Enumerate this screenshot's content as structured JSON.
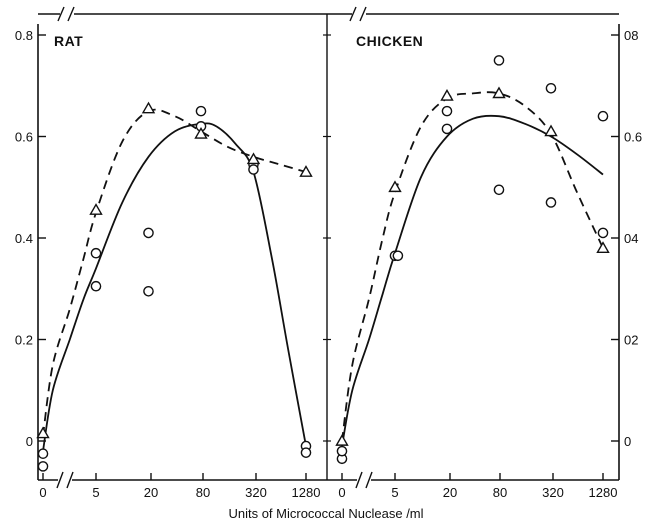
{
  "chart_data": [
    {
      "type": "scatter",
      "title": "RAT",
      "xlabel": "Units of Micrococcal Nuclease /ml",
      "ylabel": "",
      "x_scale": "log2 (broken axis at 0)",
      "x_ticks": [
        0,
        5,
        20,
        80,
        320,
        1280
      ],
      "y_ticks": [
        0,
        0.2,
        0.4,
        0.6,
        0.8
      ],
      "ylim": [
        -0.06,
        0.82
      ],
      "grid": false,
      "legend": "none",
      "series": [
        {
          "marker": "circle",
          "style": "open",
          "points": [
            {
              "x": 0,
              "y": -0.05
            },
            {
              "x": 0,
              "y": -0.025
            },
            {
              "x": 5,
              "y": 0.37
            },
            {
              "x": 5,
              "y": 0.305
            },
            {
              "x": 20,
              "y": 0.41
            },
            {
              "x": 20,
              "y": 0.295
            },
            {
              "x": 80,
              "y": 0.65
            },
            {
              "x": 80,
              "y": 0.62
            },
            {
              "x": 320,
              "y": 0.545
            },
            {
              "x": 320,
              "y": 0.535
            },
            {
              "x": 1280,
              "y": -0.01
            },
            {
              "x": 1280,
              "y": -0.023
            }
          ]
        },
        {
          "marker": "triangle",
          "style": "open",
          "points": [
            {
              "x": 0,
              "y": 0.015
            },
            {
              "x": 5,
              "y": 0.455
            },
            {
              "x": 20,
              "y": 0.655
            },
            {
              "x": 80,
              "y": 0.605
            },
            {
              "x": 320,
              "y": 0.555
            },
            {
              "x": 1280,
              "y": 0.53
            }
          ]
        }
      ],
      "curves": [
        {
          "style": "solid",
          "points": [
            {
              "x": 0,
              "y": -0.02
            },
            {
              "x": 1.6,
              "y": 0.1
            },
            {
              "x": 2.5,
              "y": 0.2
            },
            {
              "x": 3.6,
              "y": 0.28
            },
            {
              "x": 5,
              "y": 0.34
            },
            {
              "x": 10,
              "y": 0.47
            },
            {
              "x": 20,
              "y": 0.56
            },
            {
              "x": 40,
              "y": 0.61
            },
            {
              "x": 80,
              "y": 0.625
            },
            {
              "x": 120,
              "y": 0.62
            },
            {
              "x": 200,
              "y": 0.585
            },
            {
              "x": 320,
              "y": 0.53
            },
            {
              "x": 520,
              "y": 0.36
            },
            {
              "x": 800,
              "y": 0.18
            },
            {
              "x": 1280,
              "y": -0.01
            }
          ]
        },
        {
          "style": "dashed",
          "points": [
            {
              "x": 0,
              "y": 0.01
            },
            {
              "x": 1.6,
              "y": 0.15
            },
            {
              "x": 2.5,
              "y": 0.26
            },
            {
              "x": 3.6,
              "y": 0.36
            },
            {
              "x": 5,
              "y": 0.45
            },
            {
              "x": 10,
              "y": 0.59
            },
            {
              "x": 20,
              "y": 0.65
            },
            {
              "x": 40,
              "y": 0.64
            },
            {
              "x": 80,
              "y": 0.61
            },
            {
              "x": 160,
              "y": 0.58
            },
            {
              "x": 320,
              "y": 0.56
            },
            {
              "x": 640,
              "y": 0.545
            },
            {
              "x": 1280,
              "y": 0.53
            }
          ]
        }
      ]
    },
    {
      "type": "scatter",
      "title": "CHICKEN",
      "xlabel": "Units of Micrococcal Nuclease /ml",
      "ylabel": "",
      "x_scale": "log2 (broken axis at 0)",
      "x_ticks": [
        0,
        5,
        20,
        80,
        320,
        1280
      ],
      "y_ticks": [
        0,
        0.2,
        0.4,
        0.6,
        0.8
      ],
      "ylim": [
        -0.06,
        0.82
      ],
      "grid": false,
      "legend": "none",
      "series": [
        {
          "marker": "circle",
          "style": "open",
          "points": [
            {
              "x": 0,
              "y": -0.035
            },
            {
              "x": 0,
              "y": -0.02
            },
            {
              "x": 5,
              "y": 0.365
            },
            {
              "x": 5.4,
              "y": 0.365
            },
            {
              "x": 20,
              "y": 0.65
            },
            {
              "x": 20,
              "y": 0.615
            },
            {
              "x": 80,
              "y": 0.75
            },
            {
              "x": 80,
              "y": 0.495
            },
            {
              "x": 320,
              "y": 0.695
            },
            {
              "x": 320,
              "y": 0.47
            },
            {
              "x": 1280,
              "y": 0.64
            },
            {
              "x": 1280,
              "y": 0.41
            }
          ]
        },
        {
          "marker": "triangle",
          "style": "open",
          "points": [
            {
              "x": 0,
              "y": 0.0
            },
            {
              "x": 5,
              "y": 0.5
            },
            {
              "x": 20,
              "y": 0.68
            },
            {
              "x": 80,
              "y": 0.685
            },
            {
              "x": 320,
              "y": 0.61
            },
            {
              "x": 1280,
              "y": 0.38
            }
          ]
        }
      ],
      "curves": [
        {
          "style": "solid",
          "points": [
            {
              "x": 0,
              "y": -0.01
            },
            {
              "x": 1.6,
              "y": 0.1
            },
            {
              "x": 2.5,
              "y": 0.2
            },
            {
              "x": 3.6,
              "y": 0.29
            },
            {
              "x": 5,
              "y": 0.37
            },
            {
              "x": 10,
              "y": 0.52
            },
            {
              "x": 20,
              "y": 0.6
            },
            {
              "x": 40,
              "y": 0.635
            },
            {
              "x": 80,
              "y": 0.64
            },
            {
              "x": 160,
              "y": 0.625
            },
            {
              "x": 320,
              "y": 0.6
            },
            {
              "x": 640,
              "y": 0.565
            },
            {
              "x": 1280,
              "y": 0.525
            }
          ]
        },
        {
          "style": "dashed",
          "points": [
            {
              "x": 0,
              "y": 0.0
            },
            {
              "x": 1.6,
              "y": 0.15
            },
            {
              "x": 2.5,
              "y": 0.28
            },
            {
              "x": 3.6,
              "y": 0.4
            },
            {
              "x": 5,
              "y": 0.49
            },
            {
              "x": 10,
              "y": 0.62
            },
            {
              "x": 20,
              "y": 0.675
            },
            {
              "x": 40,
              "y": 0.685
            },
            {
              "x": 80,
              "y": 0.685
            },
            {
              "x": 160,
              "y": 0.66
            },
            {
              "x": 320,
              "y": 0.605
            },
            {
              "x": 640,
              "y": 0.49
            },
            {
              "x": 1280,
              "y": 0.38
            }
          ]
        }
      ]
    }
  ],
  "tick_labels": {
    "y_left": [
      "0.8",
      "0.6",
      "0.4",
      "0.2",
      "0"
    ],
    "y_right": [
      "08",
      "0.6",
      "04",
      "02",
      "0"
    ],
    "x_left": [
      "0",
      "5",
      "20",
      "80",
      "320",
      "1280"
    ],
    "x_right": [
      "0",
      "5",
      "20",
      "80",
      "320",
      "1280"
    ]
  }
}
